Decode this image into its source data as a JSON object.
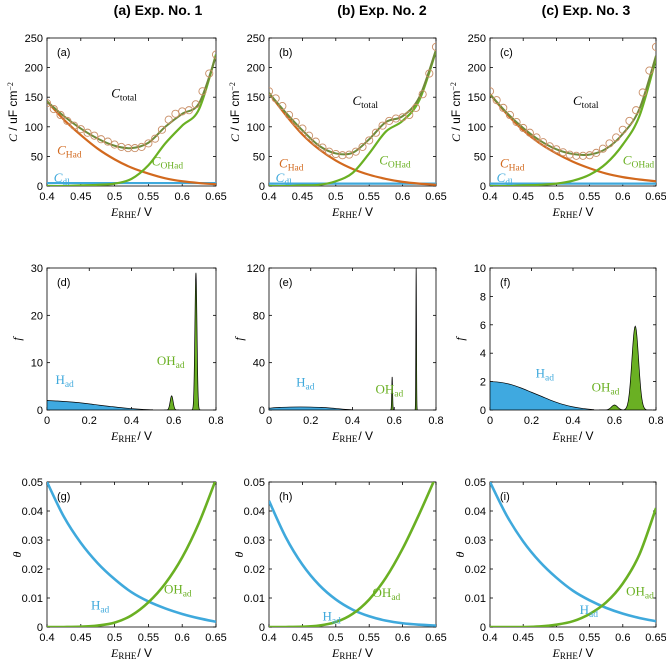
{
  "figure": {
    "column_titles": [
      "(a) Exp. No. 1",
      "(b) Exp. No. 2",
      "(c) Exp. No. 3"
    ]
  },
  "colors": {
    "total": "#000000",
    "Had": "#D2691E",
    "OHad": "#6AB023",
    "dl": "#3FA9DC",
    "fill_H": "#3FA9E0",
    "fill_OH": "#6AB023",
    "data_point": "#C98E66"
  },
  "chart_data": [
    {
      "panel": "a",
      "type": "line",
      "xlabel": "E_RHE / V",
      "ylabel": "C / uF cm^-2",
      "xlim": [
        0.4,
        0.65
      ],
      "ylim": [
        0,
        250
      ],
      "xticks": [
        0.4,
        0.45,
        0.5,
        0.55,
        0.6,
        0.65
      ],
      "xticklabels": [
        "0.4",
        "0.45",
        "0.5",
        "0.55",
        "0.6",
        "0.65"
      ],
      "yticks": [
        0,
        50,
        100,
        150,
        200,
        250
      ],
      "yticklabels": [
        "0",
        "50",
        "100",
        "150",
        "200",
        "250"
      ],
      "series_labels": [
        "C_total",
        "C_Had",
        "C_OHad",
        "C_dl"
      ],
      "x": [
        0.4,
        0.425,
        0.45,
        0.475,
        0.5,
        0.525,
        0.55,
        0.575,
        0.6,
        0.625,
        0.65
      ],
      "series": [
        {
          "name": "C_total",
          "values": [
            143,
            118,
            97,
            80,
            68,
            64,
            73,
            100,
            122,
            140,
            220
          ]
        },
        {
          "name": "C_Had",
          "values": [
            143,
            112,
            86,
            63,
            45,
            31,
            21,
            13,
            8,
            5,
            3
          ]
        },
        {
          "name": "C_OHad",
          "values": [
            0,
            0,
            1,
            2,
            4,
            12,
            35,
            72,
            102,
            130,
            222
          ]
        },
        {
          "name": "C_dl",
          "values": [
            5,
            5,
            5,
            5,
            5,
            5,
            5,
            5,
            5,
            5,
            5
          ]
        }
      ],
      "measured": {
        "x": [
          0.4,
          0.41,
          0.42,
          0.43,
          0.44,
          0.45,
          0.46,
          0.47,
          0.48,
          0.49,
          0.5,
          0.51,
          0.52,
          0.53,
          0.54,
          0.55,
          0.56,
          0.57,
          0.58,
          0.59,
          0.6,
          0.61,
          0.62,
          0.63,
          0.64,
          0.65
        ],
        "y": [
          140,
          130,
          120,
          110,
          102,
          96,
          90,
          85,
          79,
          75,
          70,
          66,
          64,
          64,
          66,
          72,
          80,
          95,
          112,
          122,
          126,
          128,
          138,
          160,
          190,
          222
        ]
      }
    },
    {
      "panel": "b",
      "type": "line",
      "xlabel": "E_RHE / V",
      "ylabel": "C / uF cm^-2",
      "xlim": [
        0.4,
        0.65
      ],
      "ylim": [
        0,
        250
      ],
      "xticks": [
        0.4,
        0.45,
        0.5,
        0.55,
        0.6,
        0.65
      ],
      "xticklabels": [
        "0.4",
        "0.45",
        "0.5",
        "0.55",
        "0.6",
        "0.65"
      ],
      "yticks": [
        0,
        50,
        100,
        150,
        200,
        250
      ],
      "yticklabels": [
        "0",
        "50",
        "100",
        "150",
        "200",
        "250"
      ],
      "series_labels": [
        "C_total",
        "C_Had",
        "C_OHad",
        "C_dl"
      ],
      "x": [
        0.4,
        0.425,
        0.45,
        0.475,
        0.5,
        0.525,
        0.55,
        0.575,
        0.6,
        0.625,
        0.65
      ],
      "series": [
        {
          "name": "C_total",
          "values": [
            157,
            124,
            94,
            68,
            55,
            56,
            79,
            108,
            118,
            150,
            230
          ]
        },
        {
          "name": "C_Had",
          "values": [
            157,
            120,
            87,
            62,
            43,
            29,
            19,
            12,
            7,
            4,
            2
          ]
        },
        {
          "name": "C_OHad",
          "values": [
            0,
            0,
            1,
            2,
            8,
            22,
            55,
            92,
            110,
            145,
            228
          ]
        },
        {
          "name": "C_dl",
          "values": [
            4,
            4,
            4,
            4,
            4,
            4,
            4,
            4,
            4,
            4,
            4
          ]
        }
      ],
      "measured": {
        "x": [
          0.4,
          0.41,
          0.42,
          0.43,
          0.44,
          0.45,
          0.46,
          0.47,
          0.48,
          0.49,
          0.5,
          0.51,
          0.52,
          0.53,
          0.54,
          0.55,
          0.56,
          0.57,
          0.58,
          0.59,
          0.6,
          0.61,
          0.62,
          0.63,
          0.64,
          0.65
        ],
        "y": [
          160,
          148,
          135,
          120,
          108,
          97,
          85,
          75,
          65,
          58,
          54,
          52,
          53,
          58,
          66,
          77,
          90,
          102,
          110,
          114,
          116,
          120,
          132,
          155,
          190,
          235
        ]
      }
    },
    {
      "panel": "c",
      "type": "line",
      "xlabel": "E_RHE / V",
      "ylabel": "C / uF cm^-2",
      "xlim": [
        0.4,
        0.65
      ],
      "ylim": [
        0,
        250
      ],
      "xticks": [
        0.4,
        0.45,
        0.5,
        0.55,
        0.6,
        0.65
      ],
      "xticklabels": [
        "0.4",
        "0.45",
        "0.5",
        "0.55",
        "0.6",
        "0.65"
      ],
      "yticks": [
        0,
        50,
        100,
        150,
        200,
        250
      ],
      "yticklabels": [
        "0",
        "50",
        "100",
        "150",
        "200",
        "250"
      ],
      "series_labels": [
        "C_total",
        "C_Had",
        "C_OHad",
        "C_dl"
      ],
      "x": [
        0.4,
        0.425,
        0.45,
        0.475,
        0.5,
        0.525,
        0.55,
        0.575,
        0.6,
        0.625,
        0.65
      ],
      "series": [
        {
          "name": "C_total",
          "values": [
            155,
            124,
            98,
            77,
            62,
            54,
            53,
            63,
            88,
            130,
            220
          ]
        },
        {
          "name": "C_Had",
          "values": [
            155,
            122,
            94,
            72,
            55,
            41,
            30,
            21,
            15,
            11,
            8
          ]
        },
        {
          "name": "C_OHad",
          "values": [
            0,
            0,
            1,
            2,
            4,
            9,
            19,
            38,
            70,
            118,
            215
          ]
        },
        {
          "name": "C_dl",
          "values": [
            4,
            4,
            4,
            4,
            4,
            4,
            4,
            4,
            4,
            4,
            4
          ]
        }
      ],
      "measured": {
        "x": [
          0.4,
          0.41,
          0.42,
          0.43,
          0.44,
          0.45,
          0.46,
          0.47,
          0.48,
          0.49,
          0.5,
          0.51,
          0.52,
          0.53,
          0.54,
          0.55,
          0.56,
          0.57,
          0.58,
          0.59,
          0.6,
          0.61,
          0.62,
          0.63,
          0.64,
          0.65
        ],
        "y": [
          160,
          145,
          132,
          120,
          108,
          98,
          90,
          82,
          74,
          67,
          62,
          57,
          53,
          51,
          51,
          52,
          56,
          63,
          72,
          82,
          95,
          110,
          128,
          158,
          195,
          235
        ]
      }
    },
    {
      "panel": "d",
      "type": "area",
      "xlabel": "E_RHE / V",
      "ylabel": "f",
      "xlim": [
        0,
        0.8
      ],
      "ylim": [
        0,
        30
      ],
      "xticks": [
        0,
        0.2,
        0.4,
        0.6,
        0.8
      ],
      "xticklabels": [
        "0",
        "0.2",
        "0.4",
        "0.6",
        "0.8"
      ],
      "yticks": [
        0,
        10,
        20,
        30
      ],
      "yticklabels": [
        "0",
        "10",
        "20",
        "30"
      ],
      "series_labels": [
        "H_ad",
        "OH_ad"
      ],
      "H": {
        "x": [
          0,
          0.05,
          0.1,
          0.15,
          0.2,
          0.25,
          0.3,
          0.35,
          0.4,
          0.45,
          0.5
        ],
        "y": [
          2.0,
          1.9,
          1.75,
          1.55,
          1.3,
          1.0,
          0.75,
          0.5,
          0.3,
          0.15,
          0.05
        ]
      },
      "OH_peaks": [
        {
          "center": 0.59,
          "height": 3.0,
          "sigma": 0.007
        },
        {
          "center": 0.705,
          "height": 29.0,
          "sigma": 0.005
        }
      ]
    },
    {
      "panel": "e",
      "type": "area",
      "xlabel": "E_RHE / V",
      "ylabel": "f",
      "xlim": [
        0,
        0.8
      ],
      "ylim": [
        0,
        120
      ],
      "xticks": [
        0,
        0.2,
        0.4,
        0.6,
        0.8
      ],
      "xticklabels": [
        "0",
        "0.2",
        "0.4",
        "0.6",
        "0.8"
      ],
      "yticks": [
        0,
        40,
        80,
        120
      ],
      "yticklabels": [
        "0",
        "40",
        "80",
        "120"
      ],
      "series_labels": [
        "H_ad",
        "OH_ad"
      ],
      "H": {
        "x": [
          0,
          0.05,
          0.1,
          0.15,
          0.2,
          0.25,
          0.3,
          0.35,
          0.4
        ],
        "y": [
          1.5,
          2.2,
          2.5,
          2.6,
          2.5,
          2.2,
          1.6,
          0.8,
          0.2
        ]
      },
      "OH_peaks": [
        {
          "center": 0.59,
          "height": 28.0,
          "sigma": 0.002
        },
        {
          "center": 0.705,
          "height": 120.0,
          "sigma": 0.0015
        }
      ]
    },
    {
      "panel": "f",
      "type": "area",
      "xlabel": "E_RHE / V",
      "ylabel": "f",
      "xlim": [
        0,
        0.8
      ],
      "ylim": [
        0,
        10
      ],
      "xticks": [
        0,
        0.2,
        0.4,
        0.6,
        0.8
      ],
      "xticklabels": [
        "0",
        "0.2",
        "0.4",
        "0.6",
        "0.8"
      ],
      "yticks": [
        0,
        2,
        4,
        6,
        8,
        10
      ],
      "yticklabels": [
        "0",
        "2",
        "4",
        "6",
        "8",
        "10"
      ],
      "series_labels": [
        "H_ad",
        "OH_ad"
      ],
      "H": {
        "x": [
          0,
          0.05,
          0.1,
          0.15,
          0.2,
          0.25,
          0.3,
          0.35,
          0.4,
          0.45,
          0.5
        ],
        "y": [
          2.0,
          1.95,
          1.8,
          1.55,
          1.25,
          0.95,
          0.65,
          0.4,
          0.22,
          0.1,
          0.03
        ]
      },
      "OH_peaks": [
        {
          "center": 0.6,
          "height": 0.35,
          "sigma": 0.015
        },
        {
          "center": 0.7,
          "height": 5.9,
          "sigma": 0.016
        }
      ]
    },
    {
      "panel": "g",
      "type": "line",
      "xlabel": "E_RHE / V",
      "ylabel": "θ",
      "xlim": [
        0.4,
        0.65
      ],
      "ylim": [
        0,
        0.05
      ],
      "xticks": [
        0.4,
        0.45,
        0.5,
        0.55,
        0.6,
        0.65
      ],
      "xticklabels": [
        "0.4",
        "0.45",
        "0.5",
        "0.55",
        "0.6",
        "0.65"
      ],
      "yticks": [
        0,
        0.01,
        0.02,
        0.03,
        0.04,
        0.05
      ],
      "yticklabels": [
        "0",
        "0.01",
        "0.02",
        "0.03",
        "0.04",
        "0.05"
      ],
      "series_labels": [
        "H_ad",
        "OH_ad"
      ],
      "x": [
        0.4,
        0.425,
        0.45,
        0.475,
        0.5,
        0.525,
        0.55,
        0.575,
        0.6,
        0.625,
        0.65
      ],
      "series": [
        {
          "name": "H_ad",
          "values": [
            0.05,
            0.038,
            0.029,
            0.022,
            0.0165,
            0.012,
            0.0088,
            0.0064,
            0.0045,
            0.003,
            0.0018
          ]
        },
        {
          "name": "OH_ad",
          "values": [
            0,
            0,
            0.0001,
            0.0005,
            0.0015,
            0.004,
            0.0085,
            0.015,
            0.024,
            0.036,
            0.051
          ]
        }
      ]
    },
    {
      "panel": "h",
      "type": "line",
      "xlabel": "E_RHE / V",
      "ylabel": "θ",
      "xlim": [
        0.4,
        0.65
      ],
      "ylim": [
        0,
        0.05
      ],
      "xticks": [
        0.4,
        0.45,
        0.5,
        0.55,
        0.6,
        0.65
      ],
      "xticklabels": [
        "0.4",
        "0.45",
        "0.5",
        "0.55",
        "0.6",
        "0.65"
      ],
      "yticks": [
        0,
        0.01,
        0.02,
        0.03,
        0.04,
        0.05
      ],
      "yticklabels": [
        "0",
        "0.01",
        "0.02",
        "0.03",
        "0.04",
        "0.05"
      ],
      "series_labels": [
        "H_ad",
        "OH_ad"
      ],
      "x": [
        0.4,
        0.425,
        0.45,
        0.475,
        0.5,
        0.525,
        0.55,
        0.575,
        0.6,
        0.625,
        0.65
      ],
      "series": [
        {
          "name": "H_ad",
          "values": [
            0.0435,
            0.031,
            0.0215,
            0.0145,
            0.0095,
            0.006,
            0.0037,
            0.0022,
            0.0013,
            0.0008,
            0.0005
          ]
        },
        {
          "name": "OH_ad",
          "values": [
            0,
            0,
            0.0001,
            0.0005,
            0.0017,
            0.0045,
            0.0095,
            0.017,
            0.027,
            0.039,
            0.052
          ]
        }
      ]
    },
    {
      "panel": "i",
      "type": "line",
      "xlabel": "E_RHE / V",
      "ylabel": "θ",
      "xlim": [
        0.4,
        0.65
      ],
      "ylim": [
        0,
        0.05
      ],
      "xticks": [
        0.4,
        0.45,
        0.5,
        0.55,
        0.6,
        0.65
      ],
      "xticklabels": [
        "0.4",
        "0.45",
        "0.5",
        "0.55",
        "0.6",
        "0.65"
      ],
      "yticks": [
        0,
        0.01,
        0.02,
        0.03,
        0.04,
        0.05
      ],
      "yticklabels": [
        "0",
        "0.01",
        "0.02",
        "0.03",
        "0.04",
        "0.05"
      ],
      "series_labels": [
        "H_ad",
        "OH_ad"
      ],
      "x": [
        0.4,
        0.425,
        0.45,
        0.475,
        0.5,
        0.525,
        0.55,
        0.575,
        0.6,
        0.625,
        0.65
      ],
      "series": [
        {
          "name": "H_ad",
          "values": [
            0.05,
            0.0385,
            0.0295,
            0.0225,
            0.017,
            0.0125,
            0.0092,
            0.0066,
            0.0046,
            0.0031,
            0.002
          ]
        },
        {
          "name": "OH_ad",
          "values": [
            0,
            0,
            0,
            0.0002,
            0.0008,
            0.002,
            0.0045,
            0.0085,
            0.015,
            0.025,
            0.041
          ]
        }
      ]
    }
  ]
}
